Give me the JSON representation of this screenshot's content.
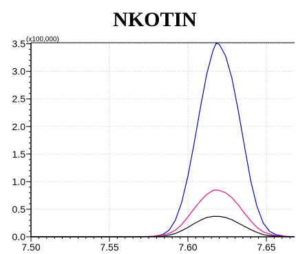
{
  "chart_data": {
    "type": "line",
    "title": "NKOTIN",
    "xlabel": "",
    "ylabel": "",
    "y_multiplier_label": "(x100,000)",
    "xlim": [
      7.5,
      7.668
    ],
    "ylim": [
      0,
      3.52
    ],
    "x_ticks": [
      7.5,
      7.55,
      7.6,
      7.65
    ],
    "x_tick_labels": [
      "7.50",
      "7.55",
      "7.60",
      "7.65"
    ],
    "y_ticks": [
      0.0,
      0.5,
      1.0,
      1.5,
      2.0,
      2.5,
      3.0,
      3.5
    ],
    "y_tick_labels": [
      "0.0",
      "0.5",
      "1.0",
      "1.5",
      "2.0",
      "2.5",
      "3.0",
      "3.5"
    ],
    "grid": true,
    "legend": "none",
    "colors": {
      "blue": "#0000cc",
      "magenta": "#e0107a",
      "black": "#000000",
      "grid": "#c0c0c0"
    },
    "series": [
      {
        "color": "#0000cc",
        "x": [
          7.5,
          7.52,
          7.54,
          7.56,
          7.57,
          7.578,
          7.584,
          7.588,
          7.592,
          7.596,
          7.6,
          7.604,
          7.608,
          7.612,
          7.616,
          7.618,
          7.62,
          7.624,
          7.628,
          7.632,
          7.636,
          7.64,
          7.644,
          7.648,
          7.652,
          7.656,
          7.662,
          7.668
        ],
        "y": [
          0.0,
          0.0,
          0.0,
          0.0,
          0.0,
          0.01,
          0.04,
          0.12,
          0.3,
          0.62,
          1.1,
          1.7,
          2.35,
          2.95,
          3.38,
          3.51,
          3.49,
          3.28,
          2.88,
          2.3,
          1.65,
          1.02,
          0.55,
          0.25,
          0.1,
          0.04,
          0.01,
          0.0
        ]
      },
      {
        "color": "#e0107a",
        "x": [
          7.5,
          7.52,
          7.54,
          7.56,
          7.57,
          7.578,
          7.584,
          7.588,
          7.592,
          7.596,
          7.6,
          7.604,
          7.608,
          7.612,
          7.616,
          7.618,
          7.62,
          7.624,
          7.628,
          7.632,
          7.636,
          7.64,
          7.644,
          7.648,
          7.652,
          7.656,
          7.662,
          7.668
        ],
        "y": [
          0.0,
          0.0,
          0.0,
          0.0,
          0.0,
          0.01,
          0.03,
          0.06,
          0.12,
          0.22,
          0.36,
          0.51,
          0.65,
          0.77,
          0.84,
          0.85,
          0.84,
          0.8,
          0.71,
          0.58,
          0.43,
          0.29,
          0.17,
          0.09,
          0.05,
          0.02,
          0.01,
          0.0
        ]
      },
      {
        "color": "#000000",
        "x": [
          7.5,
          7.52,
          7.54,
          7.56,
          7.57,
          7.578,
          7.584,
          7.588,
          7.592,
          7.596,
          7.6,
          7.604,
          7.608,
          7.612,
          7.616,
          7.618,
          7.62,
          7.624,
          7.628,
          7.632,
          7.636,
          7.64,
          7.644,
          7.648,
          7.652,
          7.656,
          7.662,
          7.668
        ],
        "y": [
          0.0,
          0.0,
          0.0,
          0.0,
          0.0,
          0.0,
          0.01,
          0.03,
          0.06,
          0.11,
          0.17,
          0.24,
          0.3,
          0.35,
          0.37,
          0.37,
          0.37,
          0.35,
          0.31,
          0.25,
          0.19,
          0.13,
          0.08,
          0.04,
          0.02,
          0.01,
          0.0,
          0.0
        ]
      }
    ]
  }
}
